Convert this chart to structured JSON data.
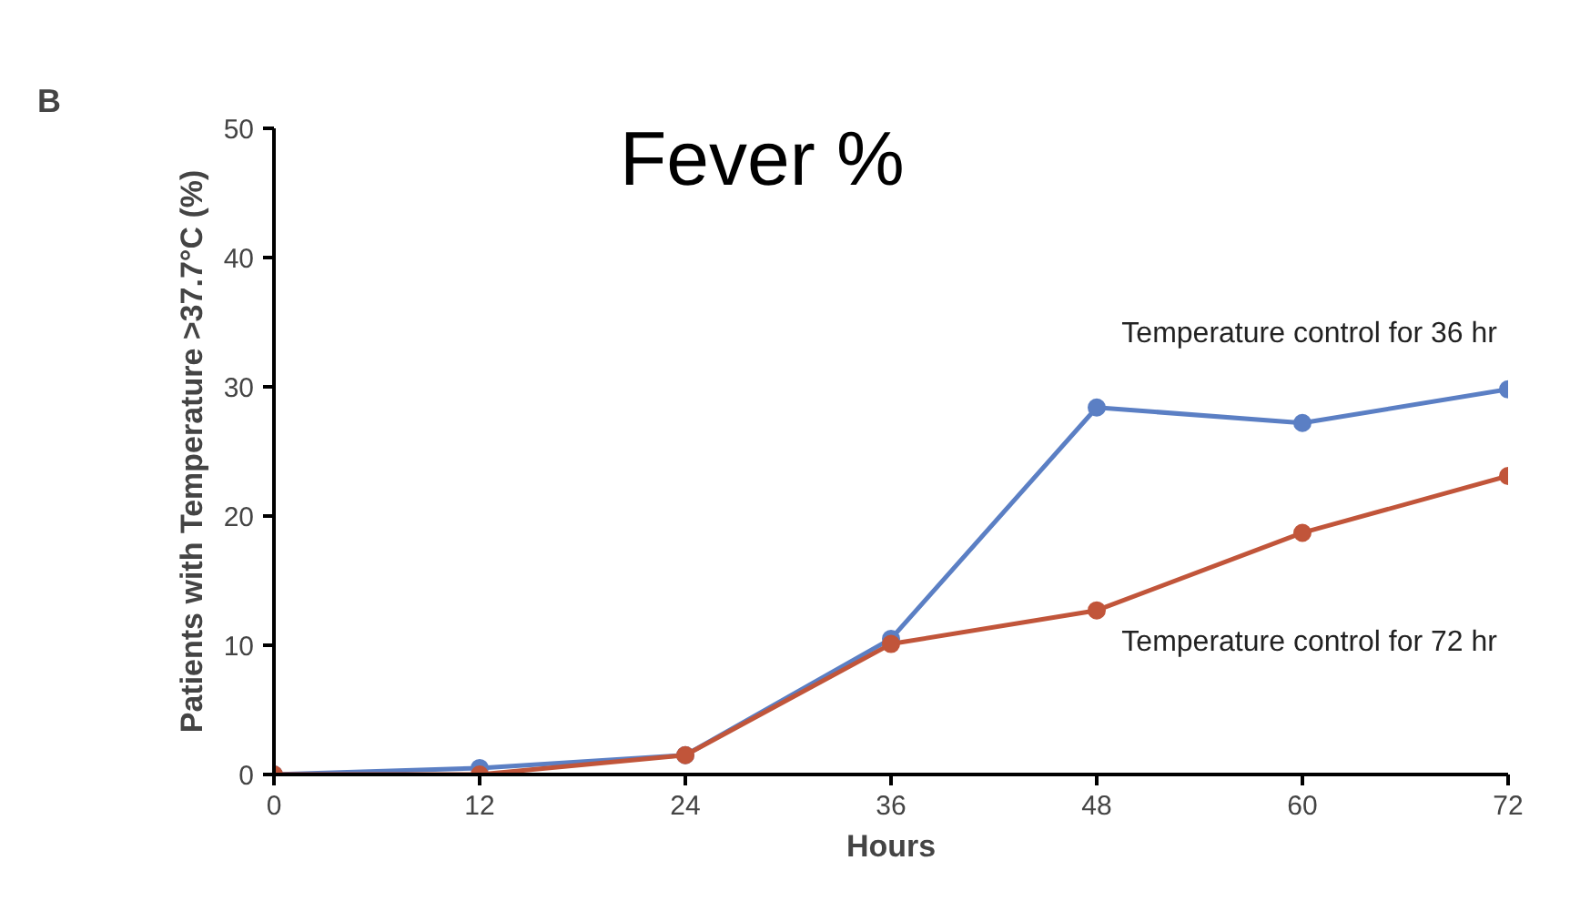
{
  "chart_data": {
    "type": "line",
    "title": "B",
    "xlabel": "Hours",
    "ylabel": "Patients with Temperature >37.7°C (%)",
    "x": [
      0,
      12,
      24,
      36,
      48,
      60,
      72
    ],
    "series": [
      {
        "name": "Temperature control for 36 hr",
        "color": "#5b7fc4",
        "values": [
          0,
          0.5,
          1.5,
          10.5,
          28.4,
          27.2,
          29.8
        ]
      },
      {
        "name": "Temperature control for 72 hr",
        "color": "#c1553a",
        "values": [
          0,
          0,
          1.5,
          10.1,
          12.7,
          18.7,
          23.1
        ]
      }
    ],
    "xlim": [
      0,
      72
    ],
    "xticks": [
      0,
      12,
      24,
      36,
      48,
      60,
      72
    ],
    "ylim": [
      0,
      50
    ],
    "yticks": [
      0,
      10,
      20,
      30,
      40,
      50
    ],
    "annotations": [
      "Fever %"
    ],
    "grid": false,
    "marker": "circle",
    "line_style": "solid"
  }
}
